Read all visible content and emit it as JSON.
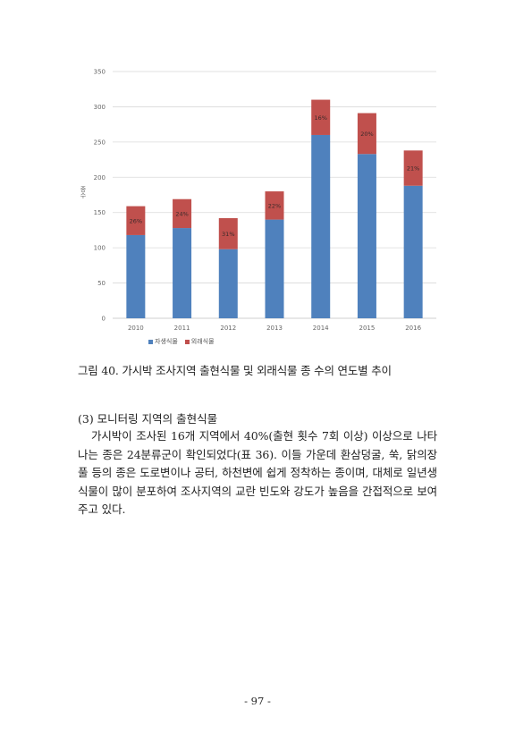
{
  "chart_data": {
    "type": "bar",
    "stacked": true,
    "categories": [
      "2010",
      "2011",
      "2012",
      "2013",
      "2014",
      "2015",
      "2016"
    ],
    "series": [
      {
        "name": "자생식물",
        "color": "#4f81bd",
        "values": [
          118,
          128,
          98,
          140,
          260,
          233,
          188
        ]
      },
      {
        "name": "외래식물",
        "color": "#c0504d",
        "values": [
          41,
          41,
          44,
          40,
          50,
          58,
          50
        ]
      }
    ],
    "data_labels": [
      "26%",
      "24%",
      "31%",
      "22%",
      "16%",
      "20%",
      "21%"
    ],
    "ylabel": "종수",
    "ylim": [
      0,
      350
    ],
    "yticks": [
      0,
      50,
      100,
      150,
      200,
      250,
      300,
      350
    ],
    "grid": true,
    "legend": "bottom"
  },
  "caption": "그림 40. 가시박 조사지역 출현식물 및 외래식물 종 수의 연도별 추이",
  "section_title": "(3) 모니터링 지역의 출현식물",
  "paragraph": "가시박이 조사된 16개 지역에서 40%(출현 횟수 7회 이상) 이상으로 나타나는 종은 24분류군이 확인되었다(표 36). 이들 가운데 환삼덩굴, 쑥, 닭의장풀 등의 종은 도로변이나 공터, 하천변에 쉽게 정착하는 종이며, 대체로 일년생 식물이 많이 분포하여 조사지역의 교란 빈도와 강도가 높음을 간접적으로 보여주고 있다.",
  "page_number": "- 97 -"
}
